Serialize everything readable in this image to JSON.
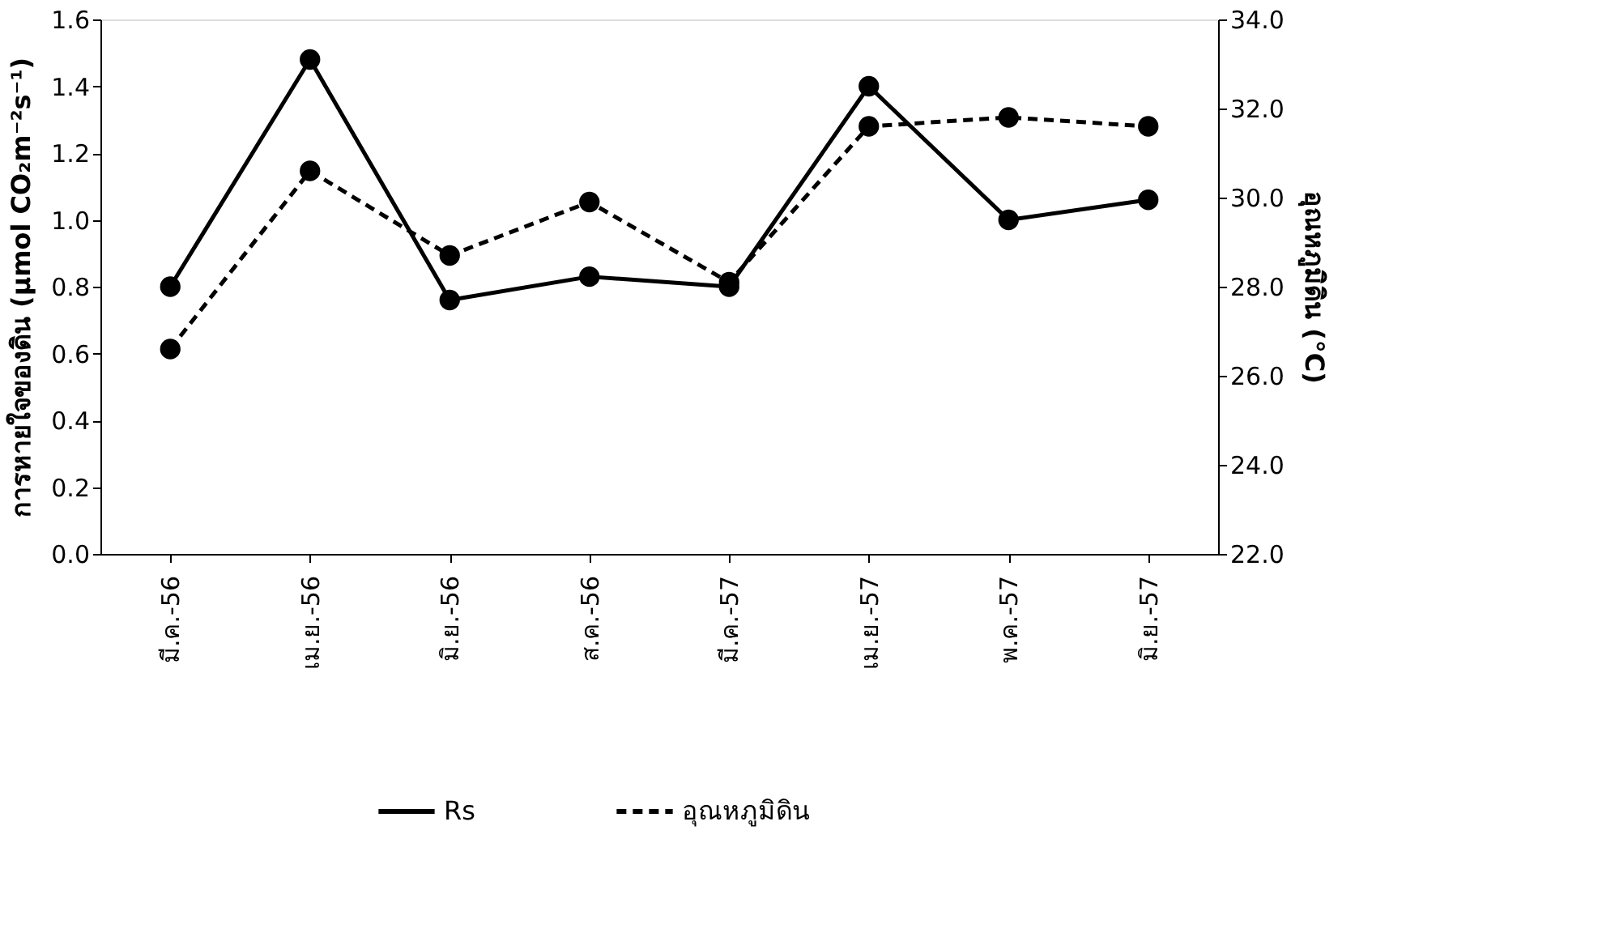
{
  "chart_data": {
    "type": "line",
    "ylabel": "การหายใจของดิน (µmol CO₂m⁻²s⁻¹)",
    "y2label": "อุณหภูมิดิน (°C)",
    "categories": [
      "มี.ค.-56",
      "เม.ย.-56",
      "มิ.ย.-56",
      "ส.ค.-56",
      "มี.ค.-57",
      "เม.ย.-57",
      "พ.ค.-57",
      "มิ.ย.-57"
    ],
    "series": [
      {
        "name": "Rs",
        "color": "#000000",
        "line_style": "solid",
        "values": [
          0.8,
          1.48,
          0.76,
          0.83,
          0.8,
          1.4,
          1.0,
          1.06
        ]
      },
      {
        "name": "อุณหภูมิดิน",
        "color": "#000000",
        "line_style": "dashed",
        "axis": "y2",
        "values": [
          26.6,
          30.6,
          28.7,
          29.9,
          28.1,
          31.6,
          31.8,
          31.6
        ]
      }
    ],
    "ylim": [
      0,
      1.6
    ],
    "yticks": [
      {
        "value": 0,
        "label": "0.0"
      },
      0.2,
      0.4,
      0.6,
      0.8,
      {
        "value": 1,
        "label": "1.0"
      },
      1.2,
      1.4,
      1.6
    ],
    "y2lim": [
      22,
      34
    ],
    "y2ticks": [
      {
        "value": 22,
        "label": "22.0"
      },
      {
        "value": 24,
        "label": "24.0"
      },
      {
        "value": 26,
        "label": "26.0"
      },
      {
        "value": 28,
        "label": "28.0"
      },
      {
        "value": 30,
        "label": "30.0"
      },
      {
        "value": 32,
        "label": "32.0"
      },
      {
        "value": 34,
        "label": "34.0"
      }
    ],
    "marker": "circle",
    "grid": false,
    "legend": "bottom"
  }
}
